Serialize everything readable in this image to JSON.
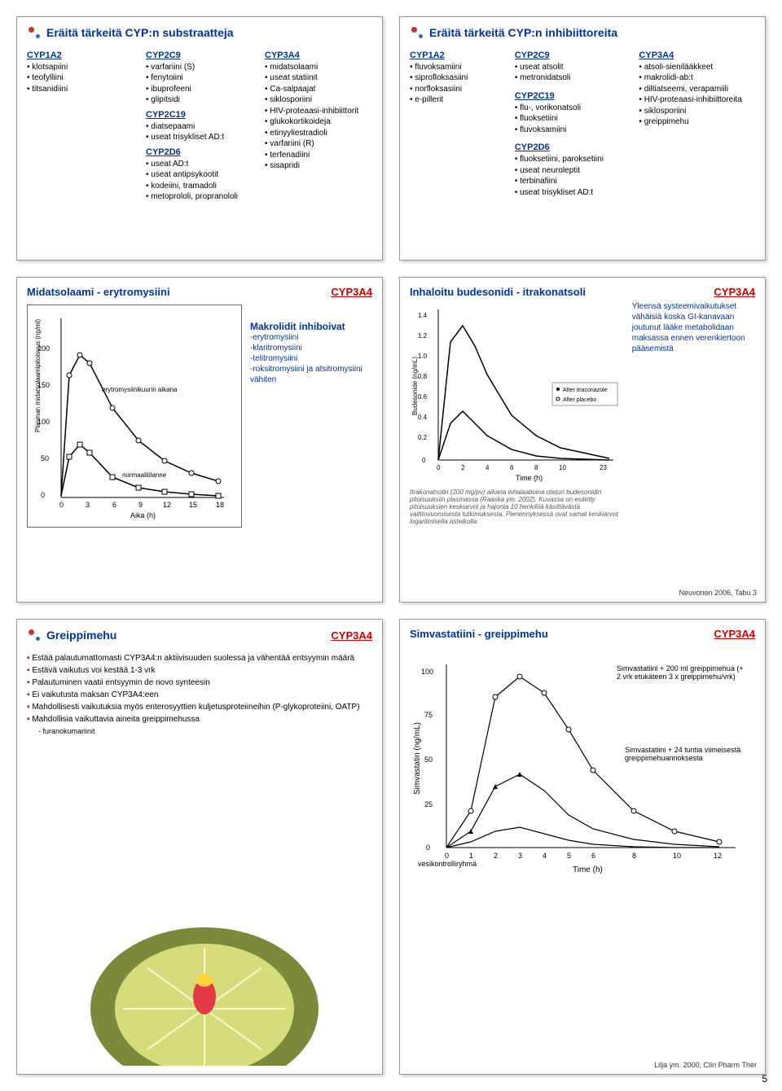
{
  "page_number": "5",
  "panel1": {
    "title": "Eräitä tärkeitä CYP:n substraatteja",
    "cols": [
      {
        "head": "CYP1A2",
        "items": [
          "klotsapiini",
          "teofylliini",
          "titsanidiini"
        ]
      },
      {
        "head": "CYP2C9",
        "items": [
          "varfariini (S)",
          "fenytoiini",
          "ibuprofeeni",
          "glipitsidi"
        ],
        "head2": "CYP2C19",
        "items2": [
          "diatsepaami",
          "useat trisykliset AD:t"
        ],
        "head3": "CYP2D6",
        "items3": [
          "useat AD:t",
          "useat antipsykootit",
          "kodeiini, tramadoli",
          "metoprololi, propranololi"
        ]
      },
      {
        "head": "CYP3A4",
        "items": [
          "midatsolaami",
          "useat statiinit",
          "Ca-salpaajat",
          "siklosporiini",
          "HIV-proteaasi-inhibiittorit",
          "glukokortikoideja",
          "etinyyliestradioli",
          "varfariini (R)",
          "terfenadiini",
          "sisapridi"
        ]
      }
    ]
  },
  "panel2": {
    "title": "Eräitä tärkeitä CYP:n inhibiittoreita",
    "c1": {
      "head": "CYP1A2",
      "items": [
        "fluvoksamiini",
        "siprofloksasiini",
        "norfloksasiini",
        "e-pillerit"
      ]
    },
    "c2": {
      "head": "CYP2C9",
      "items": [
        "useat atsolit",
        "metronidatsoli"
      ]
    },
    "c3": {
      "head": "CYP3A4",
      "items": [
        "atsoli-sienilääkkeet",
        "makrolidi-ab:t",
        "diltiatseemi, verapamiili",
        "HIV-proteaasi-inhibiittoreita",
        "siklosporiini",
        "greippimehu"
      ]
    },
    "c4": {
      "head": "CYP2C19",
      "items": [
        "flu-, vorikonatsoli",
        "fluoksetiini",
        "fluvoksamiini"
      ]
    },
    "c5": {
      "head": "CYP2D6",
      "items": [
        "fluoksetiini, paroksetiini",
        "useat neuroleptit",
        "terbinafiini",
        "useat trisykliset AD:t"
      ]
    }
  },
  "panel3": {
    "title": "Midatsolaami - erytromysiini",
    "tag": "CYP3A4",
    "sub_head": "Makrolidit inhiboivat",
    "sub_items": [
      "-erytromysiini",
      "-klaritromysiini",
      "-telitromysiini",
      "-roksitromysiini ja atsitromysiini vähiten"
    ],
    "chart": {
      "ylabel": "Plasman midatsolaamipitoisuus (ng/ml)",
      "xlabel": "Aika (h)",
      "xticks": [
        0,
        3,
        6,
        9,
        12,
        15,
        18
      ],
      "yticks": [
        0,
        50,
        100,
        150,
        200
      ],
      "series1_label": "erytromysiinikuurin aikana",
      "series2_label": "normaalitilanne",
      "colors": {
        "axis": "#000",
        "s1": "#000",
        "s2": "#000",
        "grid": "#fff"
      }
    }
  },
  "panel4": {
    "title": "Inhaloitu budesonidi - itrakonatsoli",
    "tag": "CYP3A4",
    "desc": "Yleensä systeemivaikutukset vähäisiä koska GI-kanavaan joutunut lääke metabolidaan maksassa ennen verenkiertoon pääsemistä",
    "cite": "Neuvonen 2006, Tabu 3",
    "caption": "Itrakonatsolin (200 mg/pv) aikana inhalaatioina otetun budesonidin pitoisuuksiin plasmassa (Raaska ym. 2002). Kuvassa on esitetty pitoisuuksien keskiarvot ja hajonta 10 henkilöä käsittävästä vaihtovuoroisesta tutkimuksesta. Pienennyksessä ovat samat keskiarvot logaritmisella asteikolla.",
    "chart": {
      "ylabel": "Budesonide (ng/mL)",
      "xlabel": "Time (h)",
      "xticks": [
        0,
        2,
        4,
        6,
        8,
        10,
        23
      ],
      "yticks": [
        0,
        0.2,
        0.4,
        0.6,
        0.8,
        1.0,
        1.2,
        1.4
      ],
      "legend": [
        "After itraconazole",
        "After placebo"
      ]
    }
  },
  "panel5": {
    "title": "Greippimehu",
    "tag": "CYP3A4",
    "bullets": [
      "Estää palautumattomasti CYP3A4:n aktiivisuuden suolessa ja vähentää entsyymin määrä",
      "Estävä vaikutus voi kestää 1-3 vrk",
      "Palautuminen vaatii entsyymin de novo synteesin",
      "Ei vaikutusta maksan CYP3A4:een",
      "Mahdollisesti vaikutuksia myös enterosyyttien kuljetusproteiineihin (P-glykoproteiini, OATP)",
      "Mahdollisia vaikuttavia aineita greippimehussa"
    ],
    "sub": "- furanokumariinit"
  },
  "panel6": {
    "title": "Simvastatiini - greippimehu",
    "tag": "CYP3A4",
    "ann1": "Simvastatiini + 200 ml greippimehua (+ 2 vrk etukäteen 3 x greippimehu/vrk)",
    "ann2": "Simvastatiini + 24 tuntia viimeisestä greippimehuannoksesta",
    "ann3": "vesikontrolliryhmä",
    "cite": "Lilja ym. 2000, Clin Pharm Ther",
    "chart": {
      "ylabel": "Simvastatin (ng/mL)",
      "xlabel": "Time (h)",
      "xticks": [
        0,
        1,
        2,
        3,
        4,
        5,
        6,
        8,
        10,
        12
      ],
      "yticks": [
        0,
        25,
        50,
        75,
        100
      ]
    }
  }
}
